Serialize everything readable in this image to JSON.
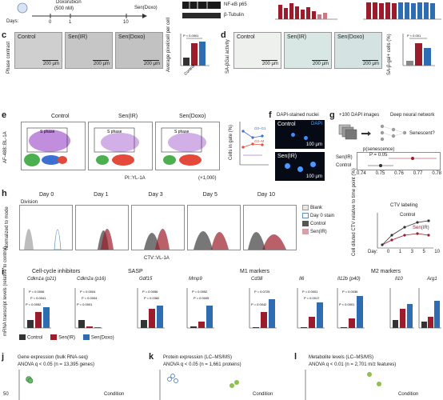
{
  "panel_a_top": {
    "drug": "Doxorubicin",
    "dose": "(500 nM)",
    "days_label": "Days:",
    "day_ticks": [
      "0",
      "1",
      "10"
    ],
    "endpoint": "Sen(Doxo)",
    "wb_rows": [
      "NF-κB p65",
      "β-Tubulin"
    ],
    "wb_marker": "10"
  },
  "panel_c": {
    "label": "c",
    "side_label": "Phase contrast",
    "images": [
      "Control",
      "Sen(IR)",
      "Sen(Doxo)"
    ],
    "scale": "200 μm",
    "ylabel": "Average pixel/cell per cell",
    "pval": "P < 0.0001"
  },
  "panel_d": {
    "label": "d",
    "side_label": "SA-βGal activity",
    "images": [
      "Control",
      "Sen(IR)",
      "Sen(Doxo)"
    ],
    "scale": "200 μm",
    "ylabel": "SA-β-gal+ cells (%)",
    "pval": "P < 0.001"
  },
  "panel_e": {
    "label": "e",
    "plots": [
      "Control",
      "Sen(IR)",
      "Sen(Doxo)"
    ],
    "gate_s": "S phase",
    "xlabel": "PI::YL-1A",
    "xunit": "(×1,000)",
    "ylabel": "AF-488::BL-1A",
    "gates": [
      "G0–G1",
      "G2–M",
      "S",
      ">4n"
    ],
    "summary_ylabel": "Cells in gate (%)"
  },
  "panel_f": {
    "label": "f",
    "title": "DAPI-stained nuclei",
    "images": [
      "Control",
      "Sen(IR)"
    ],
    "channel": "DAPI",
    "scale": "100 μm"
  },
  "panel_g": {
    "label": "g",
    "input": "+100 DAPI images",
    "model": "Deep neural network",
    "question": "Senescent?",
    "plot_title": "p(senescence)",
    "rows": [
      "Sen(IR)",
      "Control"
    ],
    "pval": "P = 0.05",
    "xticks": [
      "0.74",
      "0.75",
      "0.76",
      "0.77",
      "0.78"
    ]
  },
  "panel_h": {
    "label": "h",
    "days": [
      "Day 0",
      "Day 1",
      "Day 3",
      "Day 5",
      "Day 10"
    ],
    "division": "Division",
    "peaks": [
      "4+",
      "3",
      "2",
      "1",
      "0"
    ],
    "xlabel": "CTV::VL-1A",
    "ylabel": "Normalized to mode",
    "legend": [
      "Blank",
      "Day 0 stain",
      "Control",
      "Sen(IR)"
    ],
    "ctv_title": "CTV labeling",
    "ctv_series": [
      "Control",
      "Sen(IR)"
    ],
    "ctv_ylabel": "Cell diluted CTV relative to time point (%)",
    "ctv_xticks": [
      "Day:",
      "0",
      "1",
      "3",
      "5",
      "10"
    ]
  },
  "panel_i": {
    "label": "i",
    "groups": [
      {
        "title": "Cell-cycle inhibitors",
        "genes": [
          "Cdkn1a (p21)",
          "Cdkn2a (p16)"
        ]
      },
      {
        "title": "SASP",
        "genes": [
          "Gdf15",
          "Mmp9"
        ]
      },
      {
        "title": "M1 markers",
        "genes": [
          "Cd38",
          "Il6",
          "Il12b (p40)"
        ]
      },
      {
        "title": "M2 markers",
        "genes": [
          "Il10",
          "Arg1"
        ]
      }
    ],
    "ylabel": "mRNA transcript levels (relative to control)",
    "legend": [
      "Control",
      "Sen(IR)",
      "Sen(Doxo)"
    ],
    "pvals": [
      "P = 0.0006",
      "P = 0.0041",
      "P = 0.0052",
      "P = 0.0004",
      "P = 0.0004",
      "P = 0.0001",
      "P = 0.0056",
      "P = 0.0362",
      "P = 0.0052",
      "P = 0.0005",
      "P = 0.0725",
      "P = 0.0042",
      "P < 0.0001",
      "P = 0.0017",
      "P = 0.0036",
      "P < 0.0001",
      "P = 0.0013",
      "P = 0.0074",
      "P = 0.0003",
      "P = 0.0003",
      "P = 0.0024",
      "P < 0.0001",
      "P = 0.0010",
      "P = 0.0041"
    ]
  },
  "panel_j": {
    "label": "j",
    "title": "Gene expression (bulk RNA-seq)",
    "subtitle": "ANOVA q < 0.05 (n = 13,395 genes)",
    "tick": "50",
    "legend": "Condition"
  },
  "panel_k": {
    "label": "k",
    "title": "Protein expression (LC–MS/MS)",
    "subtitle": "ANOVA q < 0.05 (n = 1,661 proteins)",
    "legend": "Condition"
  },
  "panel_l": {
    "label": "l",
    "title": "Metabolite levels (LC–MS/MS)",
    "subtitle": "ANOVA q < 0.01 (n = 2,701 m/z features)",
    "legend": "Condition"
  },
  "colors": {
    "control": "#333333",
    "sen_ir": "#9b1c2a",
    "sen_doxo": "#2f6db3",
    "blank": "#bdbdbd"
  }
}
